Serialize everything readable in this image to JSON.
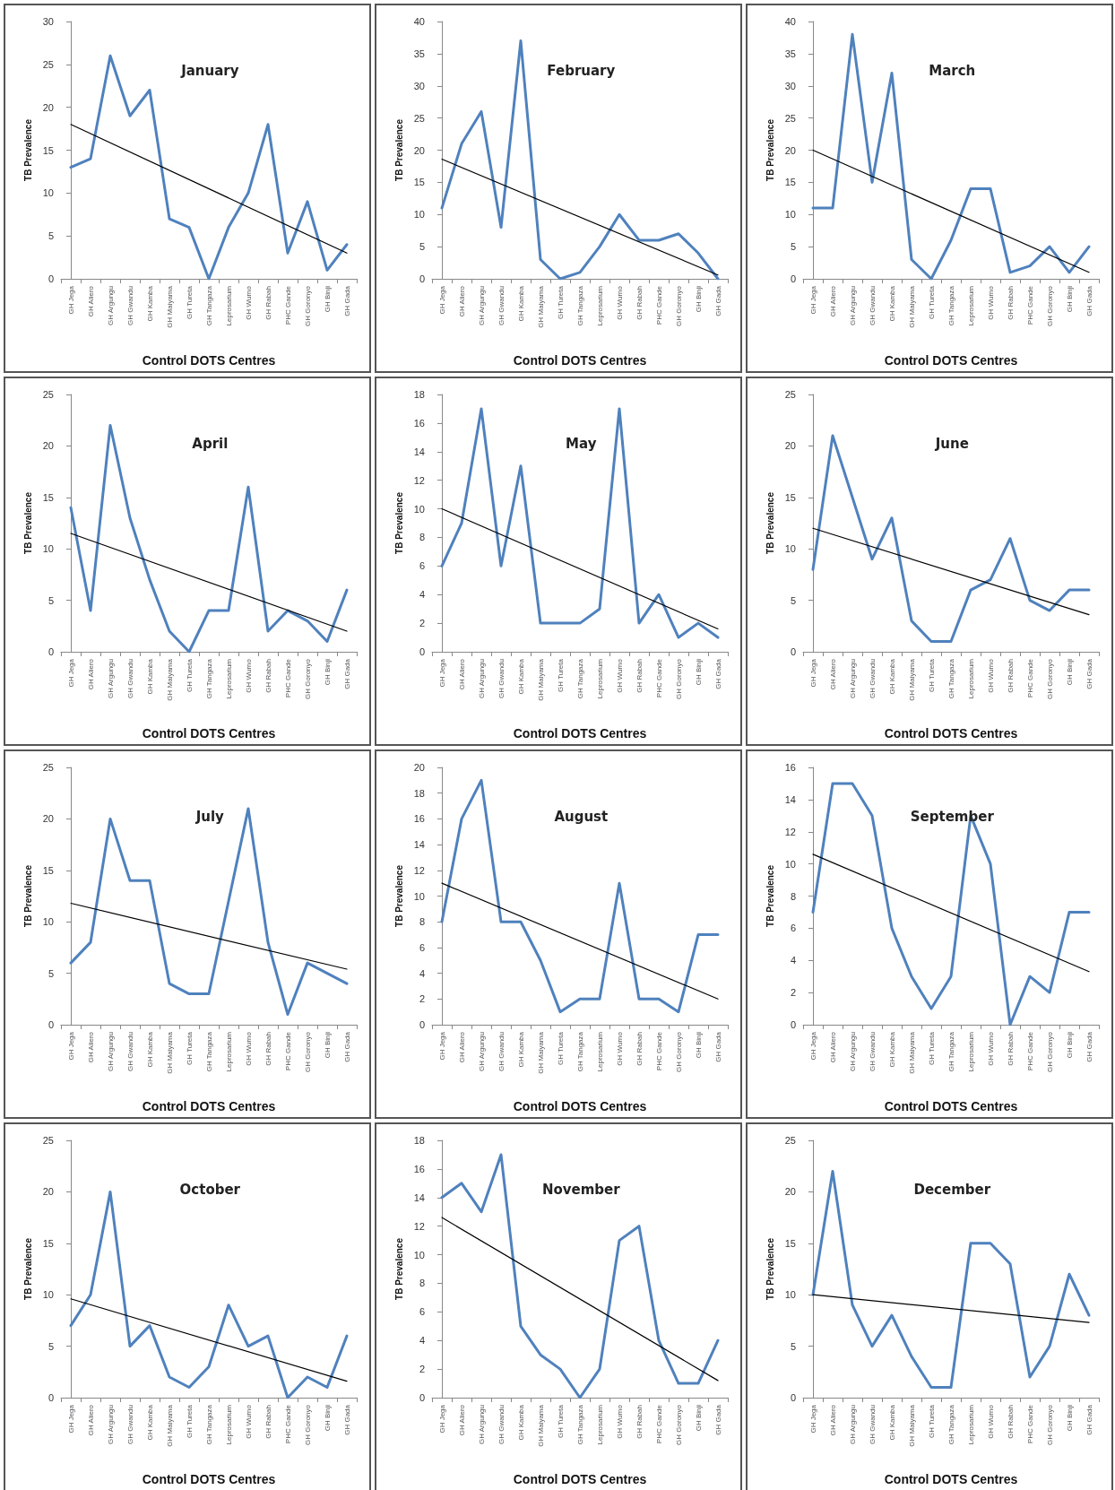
{
  "chart_data": [
    {
      "type": "line",
      "title": "January",
      "xlabel": "Control DOTS Centres",
      "ylabel": "TB Prevalence",
      "categories": [
        "GH Jega",
        "GH Aliero",
        "GH Argungu",
        "GH Gwandu",
        "GH Kamba",
        "GH Maiyama",
        "GH Tureta",
        "GH Tangaza",
        "Leprosarium",
        "GH Wurno",
        "GH Rabah",
        "PHC Gande",
        "GH Goronyo",
        "GH Binji",
        "GH Gada"
      ],
      "ylim": [
        0,
        30
      ],
      "yticks": [
        0,
        5,
        10,
        15,
        20,
        25,
        30
      ],
      "grid": false,
      "marker": "none",
      "series": [
        {
          "color": "#4f81bd",
          "values": [
            13,
            14,
            26,
            19,
            22,
            7,
            6,
            0,
            6,
            10,
            18,
            3,
            9,
            1,
            4
          ]
        },
        {
          "type": "line",
          "color": "#000000",
          "x": [
            "GH Jega",
            "GH Gada"
          ],
          "values": [
            18,
            3
          ]
        }
      ]
    },
    {
      "type": "line",
      "title": "February",
      "xlabel": "Control DOTS Centres",
      "ylabel": "TB Prevalence",
      "categories": [
        "GH Jega",
        "GH Aliero",
        "GH Argungu",
        "GH Gwandu",
        "GH Kamba",
        "GH Maiyama",
        "GH Tureta",
        "GH Tangaza",
        "Leprosarium",
        "GH Wurno",
        "GH Rabah",
        "PHC Gande",
        "GH Goronyo",
        "GH Binji",
        "GH Gada"
      ],
      "ylim": [
        0,
        40
      ],
      "yticks": [
        0,
        5,
        10,
        15,
        20,
        25,
        30,
        35,
        40
      ],
      "grid": false,
      "marker": "none",
      "series": [
        {
          "color": "#4f81bd",
          "values": [
            11,
            21,
            26,
            8,
            37,
            3,
            0,
            1,
            5,
            10,
            6,
            6,
            7,
            4,
            0
          ]
        },
        {
          "type": "line",
          "color": "#000000",
          "x": [
            "GH Jega",
            "GH Gada"
          ],
          "values": [
            18.6,
            0.6
          ]
        }
      ]
    },
    {
      "type": "line",
      "title": "March",
      "xlabel": "Control DOTS Centres",
      "ylabel": "TB Prevalence",
      "categories": [
        "GH Jega",
        "GH Aliero",
        "GH Argungu",
        "GH Gwandu",
        "GH Kamba",
        "GH Maiyama",
        "GH Tureta",
        "GH Tangaza",
        "Leprosarium",
        "GH Wurno",
        "GH Rabah",
        "PHC Gande",
        "GH Goronyo",
        "GH Binji",
        "GH Gada"
      ],
      "ylim": [
        0,
        40
      ],
      "yticks": [
        0,
        5,
        10,
        15,
        20,
        25,
        30,
        35,
        40
      ],
      "grid": false,
      "marker": "none",
      "series": [
        {
          "color": "#4f81bd",
          "values": [
            11,
            11,
            38,
            15,
            32,
            3,
            0,
            6,
            14,
            14,
            1,
            2,
            5,
            1,
            5
          ]
        },
        {
          "type": "line",
          "color": "#000000",
          "x": [
            "GH Jega",
            "GH Gada"
          ],
          "values": [
            20,
            1
          ]
        }
      ]
    },
    {
      "type": "line",
      "title": "April",
      "xlabel": "Control DOTS Centres",
      "ylabel": "TB Prevalence",
      "categories": [
        "GH Jega",
        "GH Aliero",
        "GH Argungu",
        "GH Gwandu",
        "GH Kamba",
        "GH Maiyama",
        "GH Tureta",
        "GH Tangaza",
        "Leprosarium",
        "GH Wurno",
        "GH Rabah",
        "PHC Gande",
        "GH Goronyo",
        "GH Binji",
        "GH Gada"
      ],
      "ylim": [
        0,
        25
      ],
      "yticks": [
        0,
        5,
        10,
        15,
        20,
        25
      ],
      "grid": false,
      "marker": "none",
      "series": [
        {
          "color": "#4f81bd",
          "values": [
            14,
            4,
            22,
            13,
            7,
            2,
            0,
            4,
            4,
            16,
            2,
            4,
            3,
            1,
            6
          ]
        },
        {
          "type": "line",
          "color": "#000000",
          "x": [
            "GH Jega",
            "GH Gada"
          ],
          "values": [
            11.5,
            2
          ]
        }
      ]
    },
    {
      "type": "line",
      "title": "May",
      "xlabel": "Control DOTS Centres",
      "ylabel": "TB Prevalence",
      "categories": [
        "GH Jega",
        "GH Aliero",
        "GH Argungu",
        "GH Gwandu",
        "GH Kamba",
        "GH Maiyama",
        "GH Tureta",
        "GH Tangaza",
        "Leprosarium",
        "GH Wurno",
        "GH Rabah",
        "PHC Gande",
        "GH Goronyo",
        "GH Binji",
        "GH Gada"
      ],
      "ylim": [
        0,
        18
      ],
      "yticks": [
        0,
        2,
        4,
        6,
        8,
        10,
        12,
        14,
        16,
        18
      ],
      "grid": false,
      "marker": "none",
      "series": [
        {
          "color": "#4f81bd",
          "values": [
            6,
            9,
            17,
            6,
            13,
            2,
            2,
            2,
            3,
            17,
            2,
            4,
            1,
            2,
            1
          ]
        },
        {
          "type": "line",
          "color": "#000000",
          "x": [
            "GH Jega",
            "GH Gada"
          ],
          "values": [
            10,
            1.6
          ]
        }
      ]
    },
    {
      "type": "line",
      "title": "June",
      "xlabel": "Control DOTS Centres",
      "ylabel": "TB Prevalence",
      "categories": [
        "GH Jega",
        "GH Aliero",
        "GH Argungu",
        "GH Gwandu",
        "GH Kamba",
        "GH Maiyama",
        "GH Tureta",
        "GH Tangaza",
        "Leprosarium",
        "GH Wurno",
        "GH Rabah",
        "PHC Gande",
        "GH Goronyo",
        "GH Binji",
        "GH Gada"
      ],
      "ylim": [
        0,
        25
      ],
      "yticks": [
        0,
        5,
        10,
        15,
        20,
        25
      ],
      "grid": false,
      "marker": "none",
      "series": [
        {
          "color": "#4f81bd",
          "values": [
            8,
            21,
            15,
            9,
            13,
            3,
            1,
            1,
            6,
            7,
            11,
            5,
            4,
            6,
            6
          ]
        },
        {
          "type": "line",
          "color": "#000000",
          "x": [
            "GH Jega",
            "GH Gada"
          ],
          "values": [
            12,
            3.6
          ]
        }
      ]
    },
    {
      "type": "line",
      "title": "July",
      "xlabel": "Control DOTS Centres",
      "ylabel": "TB Prevalence",
      "categories": [
        "GH Jega",
        "GH Aliero",
        "GH Argungu",
        "GH Gwandu",
        "GH Kamba",
        "GH Maiyama",
        "GH Tureta",
        "GH Tangaza",
        "Leprosarium",
        "GH Wurno",
        "GH Rabah",
        "PHC Gande",
        "GH Goronyo",
        "GH Binji",
        "GH Gada"
      ],
      "ylim": [
        0,
        25
      ],
      "yticks": [
        0,
        5,
        10,
        15,
        20,
        25
      ],
      "grid": false,
      "marker": "none",
      "series": [
        {
          "color": "#4f81bd",
          "values": [
            6,
            8,
            20,
            14,
            14,
            4,
            3,
            3,
            12,
            21,
            8,
            1,
            6,
            5,
            4
          ]
        },
        {
          "type": "line",
          "color": "#000000",
          "x": [
            "GH Jega",
            "GH Gada"
          ],
          "values": [
            11.8,
            5.4
          ]
        }
      ]
    },
    {
      "type": "line",
      "title": "August",
      "xlabel": "Control DOTS Centres",
      "ylabel": "TB Prevalence",
      "categories": [
        "GH Jega",
        "GH Aliero",
        "GH Argungu",
        "GH Gwandu",
        "GH Kamba",
        "GH Maiyama",
        "GH Tureta",
        "GH Tangaza",
        "Leprosarium",
        "GH Wurno",
        "GH Rabah",
        "PHC Gande",
        "GH Goronyo",
        "GH Binji",
        "GH Gada"
      ],
      "ylim": [
        0,
        20
      ],
      "yticks": [
        0,
        2,
        4,
        6,
        8,
        10,
        12,
        14,
        16,
        18,
        20
      ],
      "grid": false,
      "marker": "none",
      "series": [
        {
          "color": "#4f81bd",
          "values": [
            8,
            16,
            19,
            8,
            8,
            5,
            1,
            2,
            2,
            11,
            2,
            2,
            1,
            7,
            7
          ]
        },
        {
          "type": "line",
          "color": "#000000",
          "x": [
            "GH Jega",
            "GH Gada"
          ],
          "values": [
            11,
            2
          ]
        }
      ]
    },
    {
      "type": "line",
      "title": "September",
      "xlabel": "Control DOTS Centres",
      "ylabel": "TB Prevalence",
      "categories": [
        "GH Jega",
        "GH Aliero",
        "GH Argungu",
        "GH Gwandu",
        "GH Kamba",
        "GH Maiyama",
        "GH Tureta",
        "GH Tangaza",
        "Leprosarium",
        "GH Wurno",
        "GH Rabah",
        "PHC Gande",
        "GH Goronyo",
        "GH Binji",
        "GH Gada"
      ],
      "ylim": [
        0,
        16
      ],
      "yticks": [
        0,
        2,
        4,
        6,
        8,
        10,
        12,
        14,
        16
      ],
      "grid": false,
      "marker": "none",
      "series": [
        {
          "color": "#4f81bd",
          "values": [
            7,
            15,
            15,
            13,
            6,
            3,
            1,
            3,
            13,
            10,
            0,
            3,
            2,
            7,
            7
          ]
        },
        {
          "type": "line",
          "color": "#000000",
          "x": [
            "GH Jega",
            "GH Gada"
          ],
          "values": [
            10.6,
            3.3
          ]
        }
      ]
    },
    {
      "type": "line",
      "title": "October",
      "xlabel": "Control DOTS Centres",
      "ylabel": "TB Prevalence",
      "categories": [
        "GH Jega",
        "GH Aliero",
        "GH Argungu",
        "GH Gwandu",
        "GH Kamba",
        "GH Maiyama",
        "GH Tureta",
        "GH Tangaza",
        "Leprosarium",
        "GH Wurno",
        "GH Rabah",
        "PHC Gande",
        "GH Goronyo",
        "GH Binji",
        "GH Gada"
      ],
      "ylim": [
        0,
        25
      ],
      "yticks": [
        0,
        5,
        10,
        15,
        20,
        25
      ],
      "grid": false,
      "marker": "none",
      "series": [
        {
          "color": "#4f81bd",
          "values": [
            7,
            10,
            20,
            5,
            7,
            2,
            1,
            3,
            9,
            5,
            6,
            0,
            2,
            1,
            6
          ]
        },
        {
          "type": "line",
          "color": "#000000",
          "x": [
            "GH Jega",
            "GH Gada"
          ],
          "values": [
            9.6,
            1.6
          ]
        }
      ]
    },
    {
      "type": "line",
      "title": "November",
      "xlabel": "Control DOTS Centres",
      "ylabel": "TB Prevalence",
      "categories": [
        "GH Jega",
        "GH Aliero",
        "GH Argungu",
        "GH Gwandu",
        "GH Kamba",
        "GH Maiyama",
        "GH Tureta",
        "GH Tangaza",
        "Leprosarium",
        "GH Wurno",
        "GH Rabah",
        "PHC Gande",
        "GH Goronyo",
        "GH Binji",
        "GH Gada"
      ],
      "ylim": [
        0,
        18
      ],
      "yticks": [
        0,
        2,
        4,
        6,
        8,
        10,
        12,
        14,
        16,
        18
      ],
      "grid": false,
      "marker": "none",
      "series": [
        {
          "color": "#4f81bd",
          "values": [
            14,
            15,
            13,
            17,
            5,
            3,
            2,
            0,
            2,
            11,
            12,
            4,
            1,
            1,
            4
          ]
        },
        {
          "type": "line",
          "color": "#000000",
          "x": [
            "GH Jega",
            "GH Gada"
          ],
          "values": [
            12.6,
            1.2
          ]
        }
      ]
    },
    {
      "type": "line",
      "title": "December",
      "xlabel": "Control DOTS Centres",
      "ylabel": "TB Prevalence",
      "categories": [
        "GH Jega",
        "GH Aliero",
        "GH Argungu",
        "GH Gwandu",
        "GH Kamba",
        "GH Maiyama",
        "GH Tureta",
        "GH Tangaza",
        "Leprosarium",
        "GH Wurno",
        "GH Rabah",
        "PHC Gande",
        "GH Goronyo",
        "GH Binji",
        "GH Gada"
      ],
      "ylim": [
        0,
        25
      ],
      "yticks": [
        0,
        5,
        10,
        15,
        20,
        25
      ],
      "grid": false,
      "marker": "none",
      "series": [
        {
          "color": "#4f81bd",
          "values": [
            10,
            22,
            9,
            5,
            8,
            4,
            1,
            1,
            15,
            15,
            13,
            2,
            5,
            12,
            8
          ]
        },
        {
          "type": "line",
          "color": "#000000",
          "x": [
            "GH Jega",
            "GH Gada"
          ],
          "values": [
            10,
            7.3
          ]
        }
      ]
    }
  ]
}
